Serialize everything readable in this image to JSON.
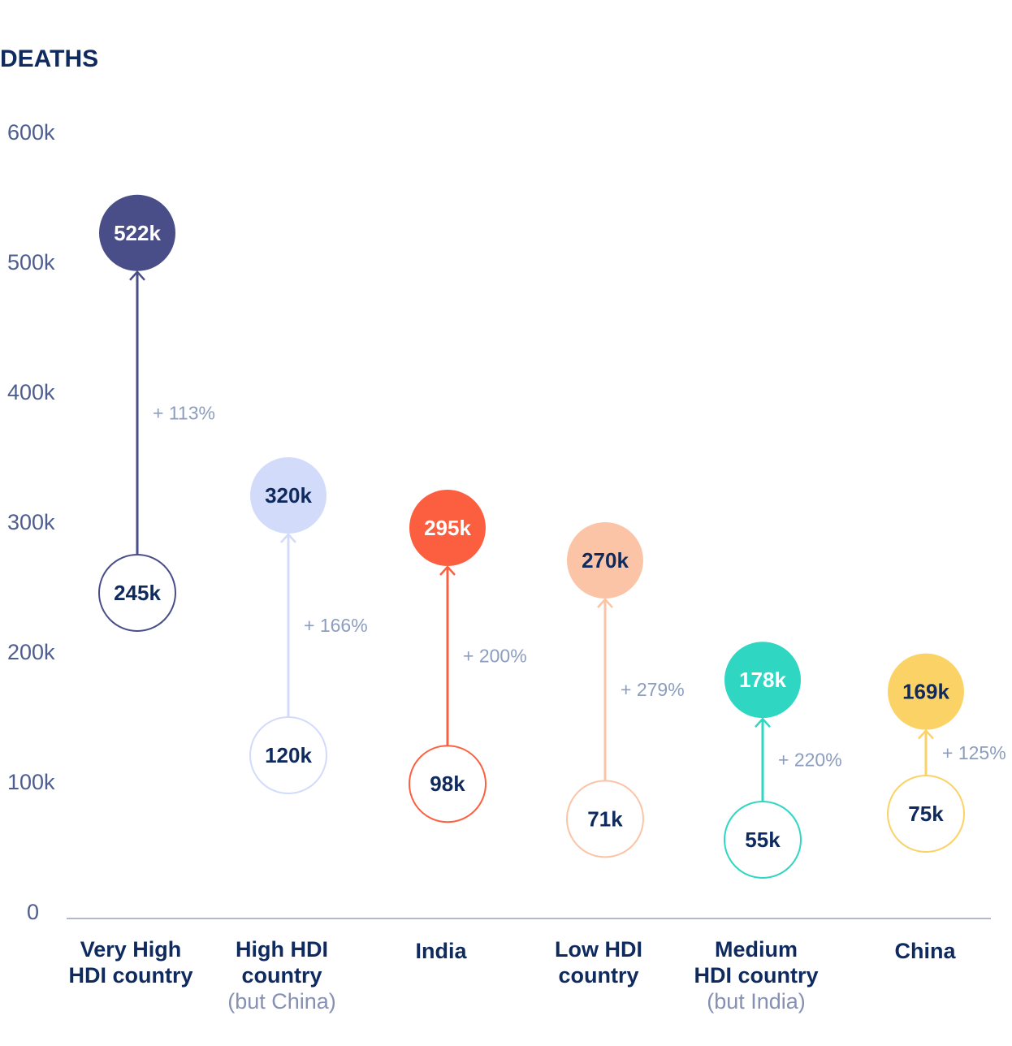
{
  "chart_data": {
    "type": "dumbbell",
    "title": "DEATHS",
    "ylim": [
      0,
      600000
    ],
    "yticks": [
      {
        "value": 0,
        "label": "0"
      },
      {
        "value": 100000,
        "label": "100k"
      },
      {
        "value": 200000,
        "label": "200k"
      },
      {
        "value": 300000,
        "label": "300k"
      },
      {
        "value": 400000,
        "label": "400k"
      },
      {
        "value": 500000,
        "label": "500k"
      },
      {
        "value": 600000,
        "label": "600k"
      }
    ],
    "grid": false,
    "categories": [
      {
        "name": [
          "Very High",
          "HDI country"
        ],
        "sub": "",
        "start": 245000,
        "start_label": "245k",
        "end": 522000,
        "end_label": "522k",
        "change": "+ 113%",
        "color": "#4a4e88",
        "filled_text_color": "#ffffff"
      },
      {
        "name": [
          "High HDI",
          "country"
        ],
        "sub": "(but China)",
        "start": 120000,
        "start_label": "120k",
        "end": 320000,
        "end_label": "320k",
        "change": "+ 166%",
        "color": "#d3dbfb",
        "filled_text_color": "#0f2a5e"
      },
      {
        "name": [
          "India"
        ],
        "sub": "",
        "start": 98000,
        "start_label": "98k",
        "end": 295000,
        "end_label": "295k",
        "change": "+ 200%",
        "color": "#fc5f3f",
        "filled_text_color": "#ffffff"
      },
      {
        "name": [
          "Low HDI",
          "country"
        ],
        "sub": "",
        "start": 71000,
        "start_label": "71k",
        "end": 270000,
        "end_label": "270k",
        "change": "+ 279%",
        "color": "#fcc4a6",
        "filled_text_color": "#0f2a5e"
      },
      {
        "name": [
          "Medium",
          "HDI country"
        ],
        "sub": "(but India)",
        "start": 55000,
        "start_label": "55k",
        "end": 178000,
        "end_label": "178k",
        "change": "+ 220%",
        "color": "#2fd6c2",
        "filled_text_color": "#ffffff"
      },
      {
        "name": [
          "China"
        ],
        "sub": "",
        "start": 75000,
        "start_label": "75k",
        "end": 169000,
        "end_label": "169k",
        "change": "+ 125%",
        "color": "#fbd266",
        "filled_text_color": "#0f2a5e"
      }
    ]
  },
  "colors": {
    "title": "#0f2a5e",
    "tick_text": "#4e5e8e",
    "pct_text": "#8c9dbd",
    "value_text": "#0f2a5e",
    "sub_text": "#8590b3",
    "axis_line": "#b2b9cc"
  }
}
